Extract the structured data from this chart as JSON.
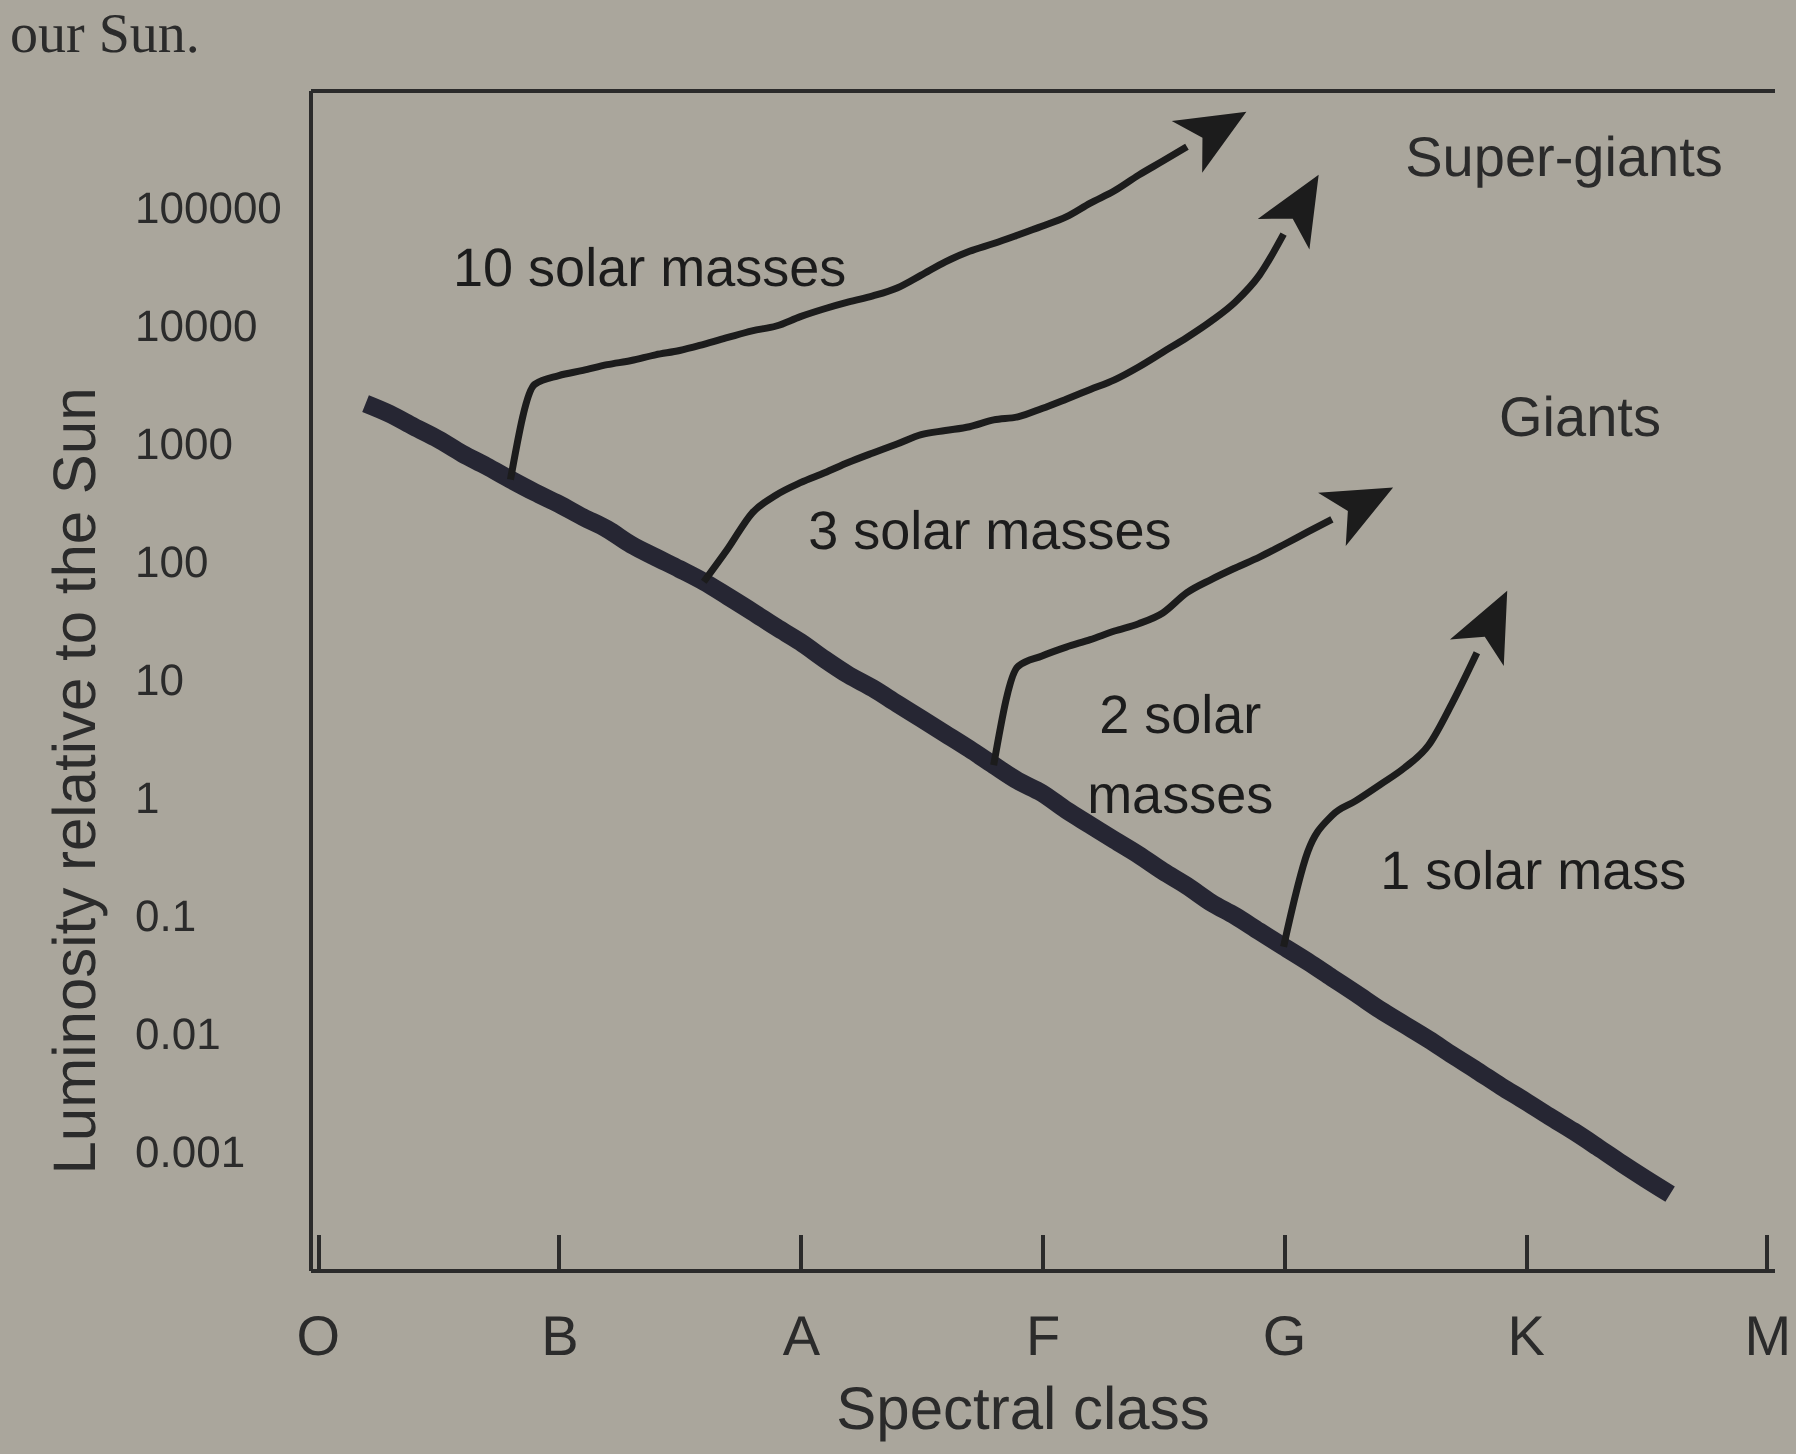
{
  "chart_data": {
    "type": "line",
    "xlabel": "Spectral class",
    "ylabel": "Luminosity relative to the Sun",
    "annotations": [
      "our Sun.",
      "Super-giants",
      "Giants"
    ],
    "log": "y",
    "categories": [
      "O",
      null,
      null,
      null,
      null,
      null,
      null,
      null,
      null,
      null,
      "B",
      null,
      null,
      null,
      null,
      null,
      null,
      null,
      null,
      null,
      "A",
      null,
      null,
      null,
      null,
      null,
      null,
      null,
      null,
      null,
      "F",
      null,
      null,
      null,
      null,
      null,
      null,
      null,
      null,
      null,
      "G",
      null,
      null,
      null,
      null,
      null,
      null,
      null,
      null,
      null,
      "K",
      null,
      null,
      null,
      null,
      null,
      null,
      null,
      null,
      null,
      "M"
    ],
    "ylim": [
      0.0001,
      1000000
    ],
    "yticks": [
      0.001,
      0.01,
      0.1,
      1,
      10,
      100,
      1000,
      10000,
      100000
    ],
    "series": [
      {
        "color": "#262633",
        "values": [
          null,
          null,
          2200,
          1800,
          1400,
          1100,
          830,
          650,
          500,
          390,
          310,
          240,
          190,
          140,
          110,
          87,
          68,
          51,
          38,
          28,
          21,
          15,
          11,
          8.5,
          6.3,
          4.7,
          3.5,
          2.6,
          1.9,
          1.4,
          1.1,
          0.79,
          0.59,
          0.44,
          0.33,
          0.24,
          0.18,
          0.13,
          0.1,
          0.074,
          0.055,
          0.041,
          0.03,
          0.022,
          0.016,
          0.012,
          0.009,
          0.0066,
          0.0049,
          0.0036,
          0.0027,
          0.002,
          0.0015,
          0.0011,
          0.0008,
          0.00059,
          0.00044,
          null,
          null,
          null,
          null
        ]
      },
      {
        "name": "10 solar masses",
        "color": "#1c1c1c",
        "values": [
          null,
          null,
          null,
          null,
          null,
          null,
          null,
          null,
          500,
          3200,
          3800,
          4200,
          4700,
          5100,
          5700,
          6200,
          7000,
          8000,
          9100,
          10000,
          12000,
          14000,
          16000,
          18000,
          21000,
          27000,
          35000,
          43000,
          50000,
          59000,
          70000,
          84000,
          110000,
          140000,
          190000,
          250000,
          330000,
          null,
          null,
          null,
          null,
          null,
          null,
          null,
          null,
          null,
          null,
          null,
          null,
          null,
          null,
          null,
          null,
          null,
          null,
          null,
          null,
          null,
          null,
          null,
          null
        ]
      },
      {
        "name": "3 solar masses",
        "color": "#1c1c1c",
        "values": [
          null,
          null,
          null,
          null,
          null,
          null,
          null,
          null,
          null,
          null,
          null,
          null,
          null,
          null,
          null,
          null,
          68,
          130,
          260,
          370,
          470,
          570,
          700,
          840,
          1000,
          1200,
          1300,
          1400,
          1600,
          1700,
          2000,
          2400,
          2900,
          3500,
          4500,
          6000,
          8000,
          11000,
          16000,
          27000,
          60000,
          null,
          null,
          null,
          null,
          null,
          null,
          null,
          null,
          null,
          null,
          null,
          null,
          null,
          null,
          null,
          null,
          null,
          null,
          null,
          null
        ]
      },
      {
        "name": "2 solar\nmasses",
        "color": "#1c1c1c",
        "values": [
          null,
          null,
          null,
          null,
          null,
          null,
          null,
          null,
          null,
          null,
          null,
          null,
          null,
          null,
          null,
          null,
          null,
          null,
          null,
          null,
          null,
          null,
          null,
          null,
          null,
          null,
          null,
          null,
          1.9,
          13,
          16,
          19,
          22,
          26,
          30,
          37,
          55,
          71,
          89,
          110,
          140,
          180,
          230,
          null,
          null,
          null,
          null,
          null,
          null,
          null,
          null,
          null,
          null,
          null,
          null,
          null,
          null,
          null,
          null,
          null,
          null
        ]
      },
      {
        "name": "1 solar mass",
        "color": "#1c1c1c",
        "values": [
          null,
          null,
          null,
          null,
          null,
          null,
          null,
          null,
          null,
          null,
          null,
          null,
          null,
          null,
          null,
          null,
          null,
          null,
          null,
          null,
          null,
          null,
          null,
          null,
          null,
          null,
          null,
          null,
          null,
          null,
          null,
          null,
          null,
          null,
          null,
          null,
          null,
          null,
          null,
          null,
          0.055,
          0.35,
          0.71,
          0.95,
          1.3,
          1.8,
          2.8,
          6.5,
          17,
          null,
          null,
          null,
          null,
          null,
          null,
          null,
          null,
          null,
          null,
          null,
          null
        ]
      }
    ]
  }
}
